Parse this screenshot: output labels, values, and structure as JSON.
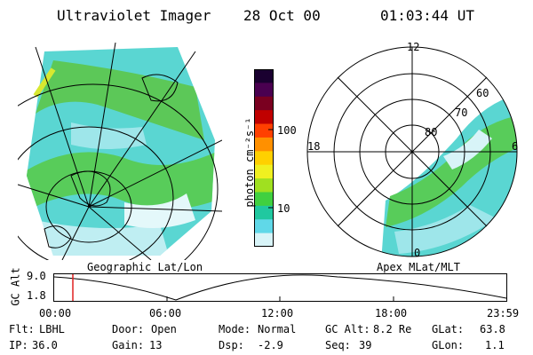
{
  "header": {
    "instrument": "Ultraviolet Imager",
    "date": "28 Oct 00",
    "time": "01:03:44 UT"
  },
  "colorbar": {
    "unit_label": "photon cm⁻²s⁻¹",
    "ticks": [
      "100",
      "10"
    ],
    "colors": [
      "#1a0030",
      "#4a0050",
      "#7a0020",
      "#c00000",
      "#ff4000",
      "#ff9000",
      "#ffd000",
      "#f0f020",
      "#a0e020",
      "#40d040",
      "#20c8a0",
      "#60d8e8",
      "#d8f4f8"
    ]
  },
  "left_panel": {
    "caption": "Geographic Lat/Lon"
  },
  "right_panel": {
    "caption": "Apex MLat/MLT",
    "mlt_labels": {
      "top": "12",
      "left": "18",
      "right": "6",
      "bottom": "0"
    },
    "lat_labels": [
      "60",
      "70",
      "80"
    ]
  },
  "altitude_plot": {
    "ylabel": "GC Alt",
    "yticks": [
      "9.0",
      "1.8"
    ],
    "xticks": [
      "00:00",
      "06:00",
      "12:00",
      "18:00",
      "23:59"
    ]
  },
  "status": {
    "flt_label": "Flt:",
    "flt_value": "LBHL",
    "door_label": "Door:",
    "door_value": "Open",
    "mode_label": "Mode:",
    "mode_value": "Normal",
    "gcalt_label": "GC Alt:",
    "gcalt_value": "8.2 Re",
    "glat_label": "GLat:",
    "glat_value": "63.8",
    "ip_label": "IP:",
    "ip_value": "36.0",
    "gain_label": "Gain:",
    "gain_value": "13",
    "dsp_label": "Dsp:",
    "dsp_value": "-2.9",
    "seq_label": "Seq:",
    "seq_value": "39",
    "glon_label": "GLon:",
    "glon_value": "1.1"
  }
}
